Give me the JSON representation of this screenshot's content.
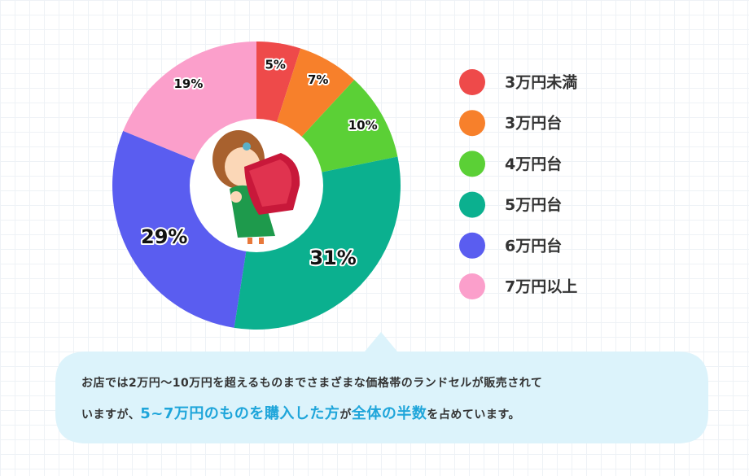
{
  "chart_data": {
    "type": "donut",
    "categories": [
      "3万円未満",
      "3万円台",
      "4万円台",
      "5万円台",
      "6万円台",
      "7万円以上"
    ],
    "values": [
      5,
      7,
      10,
      31,
      29,
      19
    ],
    "value_labels": [
      "5%",
      "7%",
      "10%",
      "31%",
      "29%",
      "19%"
    ],
    "colors": [
      "#ee4a4a",
      "#f7802b",
      "#5bd036",
      "#0bb08f",
      "#5a5df0",
      "#fb9fcb"
    ],
    "legend": "right"
  },
  "note": {
    "lines": [
      [
        {
          "text": "お店では2万円〜10万円を超えるものまでさまざまな価格帯のランドセルが販売されて",
          "style": "normal"
        }
      ],
      [
        {
          "text": "いますが、",
          "style": "normal"
        },
        {
          "text": "5~7万円のものを購入した方",
          "style": "emphasis"
        },
        {
          "text": "が",
          "style": "normal"
        },
        {
          "text": "全体の半数",
          "style": "emphasis"
        },
        {
          "text": "を占めています。",
          "style": "normal"
        }
      ]
    ]
  }
}
